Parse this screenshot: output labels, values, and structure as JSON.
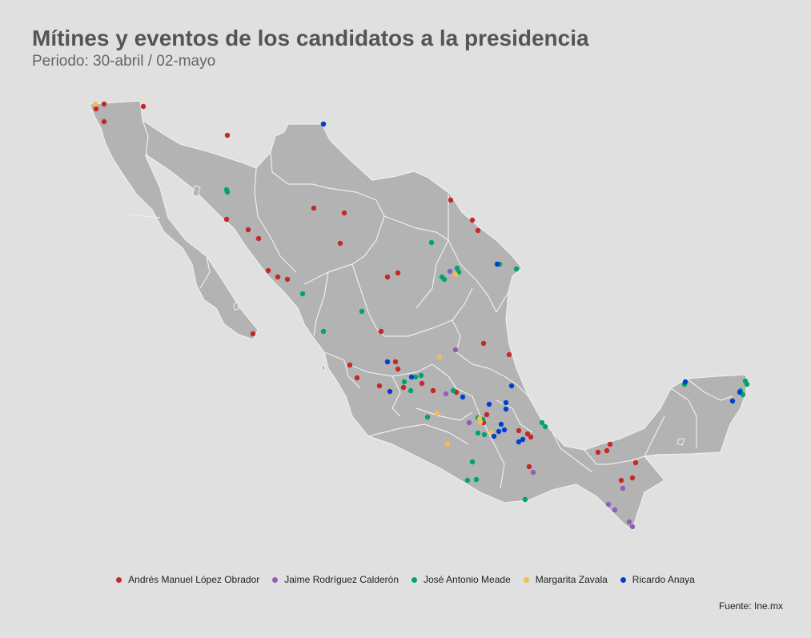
{
  "title": "Mítines y eventos de los candidatos a la presidencia",
  "subtitle": "Periodo: 30-abril / 02-mayo",
  "source": "Fuente: Ine.mx",
  "legend": [
    {
      "name": "Andrés Manuel López Obrador",
      "color": "#c62828"
    },
    {
      "name": "Jaime Rodríguez Calderón",
      "color": "#8e5fb8"
    },
    {
      "name": "José Antonio Meade",
      "color": "#00a36c"
    },
    {
      "name": "Margarita Zavala",
      "color": "#f5bc50"
    },
    {
      "name": "Ricardo Anaya",
      "color": "#0040d0"
    }
  ],
  "map_colors": {
    "land": "#b3b3b3",
    "borders": "#eeeeee"
  }
}
